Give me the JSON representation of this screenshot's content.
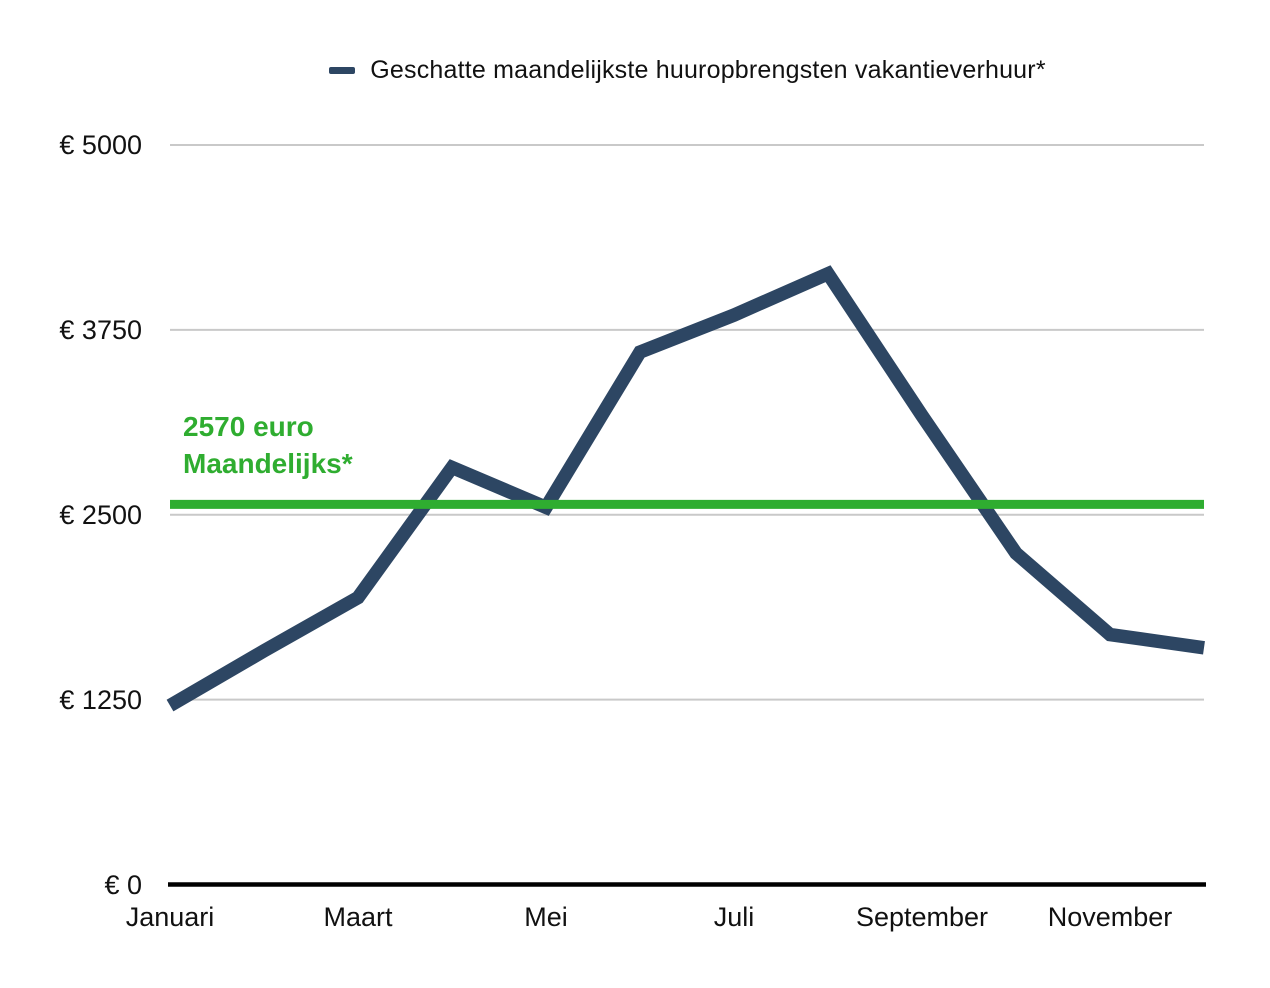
{
  "chart_data": {
    "type": "line",
    "legend": "Geschatte maandelijkste huuropbrengsten vakantieverhuur*",
    "series": [
      {
        "name": "Geschatte maandelijkste huuropbrengsten vakantieverhuur*",
        "color": "#2d4663",
        "values": [
          1210,
          1580,
          1940,
          2820,
          2550,
          3600,
          3850,
          4130,
          3170,
          2240,
          1690,
          1600
        ]
      }
    ],
    "num_points": 12,
    "x_ticks": [
      {
        "index": 0,
        "label": "Januari"
      },
      {
        "index": 2,
        "label": "Maart"
      },
      {
        "index": 4,
        "label": "Mei"
      },
      {
        "index": 6,
        "label": "Juli"
      },
      {
        "index": 8,
        "label": "September"
      },
      {
        "index": 10,
        "label": "November"
      }
    ],
    "y_ticks": [
      {
        "value": 5000,
        "label": "€ 5000"
      },
      {
        "value": 3750,
        "label": "€ 3750"
      },
      {
        "value": 2500,
        "label": "€ 2500"
      },
      {
        "value": 1250,
        "label": "€ 1250"
      },
      {
        "value": 0,
        "label": "€ 0"
      }
    ],
    "ylim": [
      0,
      5000
    ],
    "grid": "horizontal",
    "legend_position": "top-center",
    "reference_line": {
      "value": 2570,
      "color": "#2fad30",
      "label_line1": "2570 euro",
      "label_line2": "Maandelijks*"
    },
    "colors": {
      "series_line": "#2d4663",
      "reference_line": "#2fad30",
      "annotation_text": "#2fad30",
      "gridline": "#c9c9c9",
      "axis_line": "#000000",
      "tick_text": "#111111"
    }
  }
}
